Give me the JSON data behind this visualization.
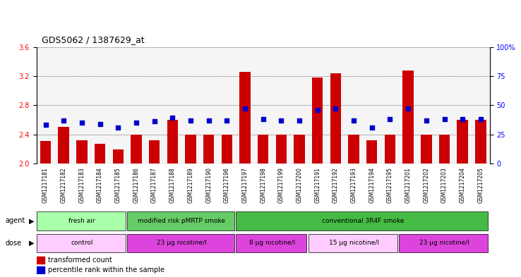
{
  "title": "GDS5062 / 1387629_at",
  "samples": [
    "GSM1217181",
    "GSM1217182",
    "GSM1217183",
    "GSM1217184",
    "GSM1217185",
    "GSM1217186",
    "GSM1217187",
    "GSM1217188",
    "GSM1217189",
    "GSM1217190",
    "GSM1217196",
    "GSM1217197",
    "GSM1217198",
    "GSM1217199",
    "GSM1217200",
    "GSM1217191",
    "GSM1217192",
    "GSM1217193",
    "GSM1217194",
    "GSM1217195",
    "GSM1217201",
    "GSM1217202",
    "GSM1217203",
    "GSM1217204",
    "GSM1217205"
  ],
  "bar_values": [
    2.31,
    2.5,
    2.32,
    2.27,
    2.19,
    2.4,
    2.32,
    2.6,
    2.4,
    2.4,
    2.4,
    3.26,
    2.4,
    2.4,
    2.4,
    3.18,
    3.24,
    2.4,
    2.32,
    2.4,
    3.28,
    2.4,
    2.4,
    2.6,
    2.6
  ],
  "percentile_values": [
    33,
    37,
    35,
    34,
    31,
    35,
    36,
    39,
    37,
    37,
    37,
    47,
    38,
    37,
    37,
    46,
    47,
    37,
    31,
    38,
    47,
    37,
    38,
    38,
    38
  ],
  "ylim_left": [
    2.0,
    3.6
  ],
  "ylim_right": [
    0,
    100
  ],
  "yticks_left": [
    2.0,
    2.4,
    2.8,
    3.2,
    3.6
  ],
  "yticks_right": [
    0,
    25,
    50,
    75,
    100
  ],
  "bar_color": "#cc0000",
  "percentile_color": "#0000cc",
  "grid_color": "#000000",
  "agent_groups": [
    {
      "label": "fresh air",
      "start": 0,
      "end": 5,
      "color": "#aaffaa"
    },
    {
      "label": "modified risk pMRTP smoke",
      "start": 5,
      "end": 11,
      "color": "#66cc66"
    },
    {
      "label": "conventional 3R4F smoke",
      "start": 11,
      "end": 25,
      "color": "#44bb44"
    }
  ],
  "dose_groups": [
    {
      "label": "control",
      "start": 0,
      "end": 5,
      "color": "#ffccff"
    },
    {
      "label": "23 μg nicotine/l",
      "start": 5,
      "end": 11,
      "color": "#dd44dd"
    },
    {
      "label": "8 μg nicotine/l",
      "start": 11,
      "end": 15,
      "color": "#dd44dd"
    },
    {
      "label": "15 μg nicotine/l",
      "start": 15,
      "end": 20,
      "color": "#ffccff"
    },
    {
      "label": "23 μg nicotine/l",
      "start": 20,
      "end": 25,
      "color": "#dd44dd"
    }
  ],
  "legend_bar_label": "transformed count",
  "legend_pct_label": "percentile rank within the sample",
  "background_plot": "#f5f5f5",
  "background_agent": "#ccffcc",
  "background_dose_light": "#ffccff",
  "background_dose_dark": "#dd44dd"
}
